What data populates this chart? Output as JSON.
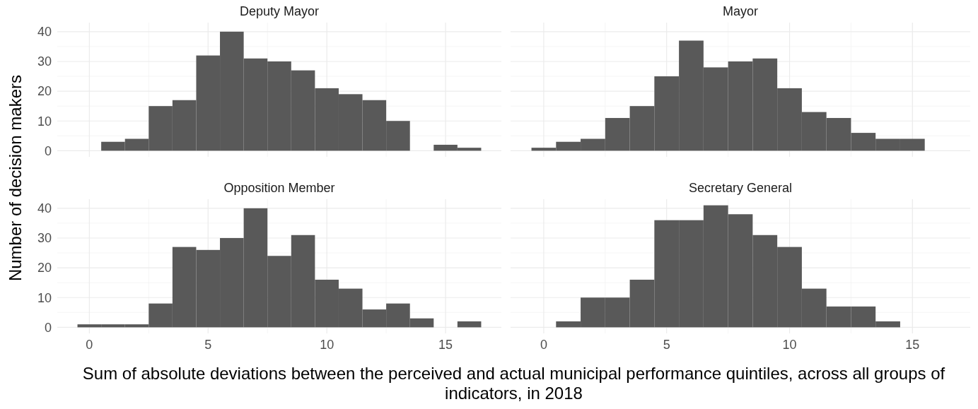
{
  "chart_data": [
    {
      "type": "histogram",
      "title": "Deputy Mayor",
      "ylabel": "Number of decision makers",
      "color": "#595959",
      "bins": [
        -0.5,
        0.5,
        1.5,
        2.5,
        3.5,
        4.5,
        5.5,
        6.5,
        7.5,
        8.5,
        9.5,
        10.5,
        11.5,
        12.5,
        13.5,
        14.5,
        15.5,
        16.5
      ],
      "values": [
        0,
        3,
        4,
        15,
        17,
        32,
        40,
        31,
        30,
        27,
        21,
        19,
        17,
        10,
        0,
        2,
        1
      ],
      "xlim": [
        -1.35,
        17.35
      ],
      "ylim": [
        -2.05,
        43.05
      ],
      "xticks": [
        0,
        5,
        10,
        15
      ],
      "yticks": [
        0,
        10,
        20,
        30,
        40
      ],
      "grid": true,
      "tick_labels": "y"
    },
    {
      "type": "histogram",
      "title": "Mayor",
      "color": "#595959",
      "bins": [
        -0.5,
        0.5,
        1.5,
        2.5,
        3.5,
        4.5,
        5.5,
        6.5,
        7.5,
        8.5,
        9.5,
        10.5,
        11.5,
        12.5,
        13.5,
        14.5,
        15.5
      ],
      "values": [
        1,
        3,
        4,
        11,
        15,
        25,
        37,
        28,
        30,
        31,
        21,
        13,
        11,
        6,
        4,
        4
      ],
      "xlim": [
        -1.35,
        17.35
      ],
      "ylim": [
        -2.05,
        43.05
      ],
      "xticks": [
        0,
        5,
        10,
        15
      ],
      "yticks": [
        0,
        10,
        20,
        30,
        40
      ],
      "grid": true,
      "tick_labels": false
    },
    {
      "type": "histogram",
      "title": "Opposition Member",
      "xlabel": "Sum of absolute deviations between the perceived and actual municipal performance quintiles, across all groups of indicators, in 2018",
      "color": "#595959",
      "bins": [
        -0.5,
        0.5,
        1.5,
        2.5,
        3.5,
        4.5,
        5.5,
        6.5,
        7.5,
        8.5,
        9.5,
        10.5,
        11.5,
        12.5,
        13.5,
        14.5,
        15.5,
        16.5
      ],
      "values": [
        1,
        1,
        1,
        8,
        27,
        26,
        30,
        40,
        24,
        31,
        16,
        13,
        6,
        8,
        3,
        0,
        2
      ],
      "xlim": [
        -1.35,
        17.35
      ],
      "ylim": [
        -2.05,
        43.05
      ],
      "xticks": [
        0,
        5,
        10,
        15
      ],
      "yticks": [
        0,
        10,
        20,
        30,
        40
      ],
      "grid": true
    },
    {
      "type": "histogram",
      "title": "Secretary General",
      "color": "#595959",
      "bins": [
        0.5,
        1.5,
        2.5,
        3.5,
        4.5,
        5.5,
        6.5,
        7.5,
        8.5,
        9.5,
        10.5,
        11.5,
        12.5,
        13.5,
        14.5
      ],
      "values": [
        2,
        10,
        10,
        16,
        36,
        36,
        41,
        38,
        31,
        27,
        13,
        7,
        7,
        2
      ],
      "xlim": [
        -1.35,
        17.35
      ],
      "ylim": [
        -2.05,
        43.05
      ],
      "xticks": [
        0,
        5,
        10,
        15
      ],
      "yticks": [
        0,
        10,
        20,
        30,
        40
      ],
      "grid": true,
      "tick_labels": "x"
    }
  ]
}
